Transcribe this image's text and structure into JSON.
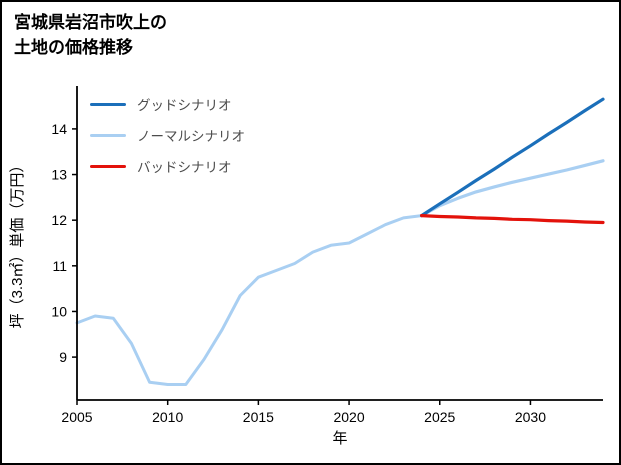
{
  "title": {
    "line1": "宮城県岩沼市吹上の",
    "line2": "土地の価格推移"
  },
  "chart_data": {
    "type": "line",
    "title": "宮城県岩沼市吹上の土地の価格推移",
    "xlabel": "年",
    "ylabel": "坪（3.3㎡）単価（万円）",
    "xlim": [
      2005,
      2034
    ],
    "ylim": [
      8.06,
      14.94
    ],
    "xticks": [
      2005,
      2010,
      2015,
      2020,
      2025,
      2030
    ],
    "yticks": [
      9,
      10,
      11,
      12,
      13,
      14
    ],
    "grid": false,
    "legend_position": "upper-left-inside",
    "legend": [
      {
        "label": "グッドシナリオ",
        "color": "#1b6fba"
      },
      {
        "label": "ノーマルシナリオ",
        "color": "#a9cff2"
      },
      {
        "label": "バッドシナリオ",
        "color": "#e3120b"
      }
    ],
    "series": [
      {
        "id": "history",
        "color": "#a9cff2",
        "width": 3,
        "x": [
          2005,
          2006,
          2007,
          2008,
          2009,
          2010,
          2011,
          2012,
          2013,
          2014,
          2015,
          2016,
          2017,
          2018,
          2019,
          2020,
          2021,
          2022,
          2023,
          2024
        ],
        "y": [
          9.75,
          9.9,
          9.85,
          9.3,
          8.45,
          8.4,
          8.4,
          8.95,
          9.6,
          10.35,
          10.75,
          10.9,
          11.05,
          11.3,
          11.45,
          11.5,
          11.7,
          11.9,
          12.05,
          12.1
        ]
      },
      {
        "id": "normal-scenario",
        "color": "#a9cff2",
        "width": 3.2,
        "x": [
          2024,
          2025,
          2026,
          2027,
          2028,
          2029,
          2030,
          2031,
          2032,
          2033,
          2034
        ],
        "y": [
          12.1,
          12.32,
          12.48,
          12.62,
          12.73,
          12.83,
          12.92,
          13.01,
          13.1,
          13.2,
          13.3
        ]
      },
      {
        "id": "good-scenario",
        "color": "#1b6fba",
        "width": 3.2,
        "x": [
          2024,
          2025,
          2026,
          2027,
          2028,
          2029,
          2030,
          2031,
          2032,
          2033,
          2034
        ],
        "y": [
          12.1,
          12.36,
          12.61,
          12.87,
          13.12,
          13.38,
          13.63,
          13.89,
          14.14,
          14.4,
          14.65
        ]
      },
      {
        "id": "bad-scenario",
        "color": "#e3120b",
        "width": 3.2,
        "x": [
          2024,
          2025,
          2026,
          2027,
          2028,
          2029,
          2030,
          2031,
          2032,
          2033,
          2034
        ],
        "y": [
          12.1,
          12.08,
          12.07,
          12.05,
          12.04,
          12.02,
          12.01,
          11.99,
          11.98,
          11.96,
          11.95
        ]
      }
    ]
  },
  "colors": {
    "axis": "#000000",
    "legend_text": "#4d4d4d",
    "background": "#ffffff",
    "border": "#000000"
  }
}
